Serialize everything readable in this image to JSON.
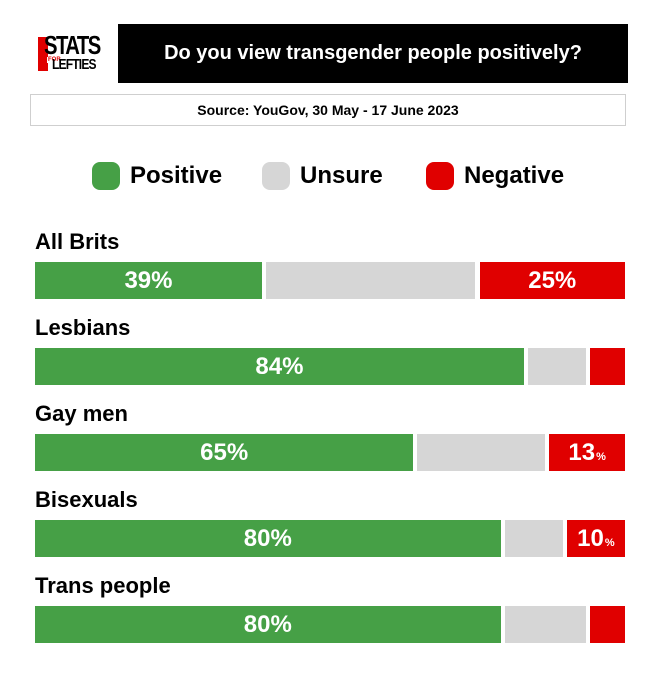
{
  "logo": {
    "stats": "STATS",
    "for": "FOR",
    "lefties": "LEFTIES"
  },
  "title": "Do you view transgender people positively?",
  "source": "Source: YouGov, 30 May - 17 June 2023",
  "colors": {
    "positive": "#46a046",
    "unsure": "#d6d6d6",
    "negative": "#e00000"
  },
  "chart_data": {
    "type": "bar",
    "orientation": "horizontal-stacked",
    "title": "Do you view transgender people positively?",
    "legend": [
      "Positive",
      "Unsure",
      "Negative"
    ],
    "legend_position": "top",
    "categories": [
      "All Brits",
      "Lesbians",
      "Gay men",
      "Bisexuals",
      "Trans people"
    ],
    "series": [
      {
        "name": "Positive",
        "values": [
          39,
          84,
          65,
          80,
          80
        ],
        "labels": [
          "39%",
          "84%",
          "65%",
          "80%",
          "80%"
        ]
      },
      {
        "name": "Unsure",
        "values": [
          36,
          10,
          22,
          10,
          14
        ],
        "labels": [
          "",
          "",
          "",
          "",
          ""
        ]
      },
      {
        "name": "Negative",
        "values": [
          25,
          6,
          13,
          10,
          6
        ],
        "labels": [
          "25%",
          "",
          "13",
          "10",
          ""
        ]
      }
    ],
    "label_small_suffix": [
      "",
      "",
      "%",
      "%",
      ""
    ],
    "xlim": [
      0,
      100
    ],
    "grid": false
  }
}
